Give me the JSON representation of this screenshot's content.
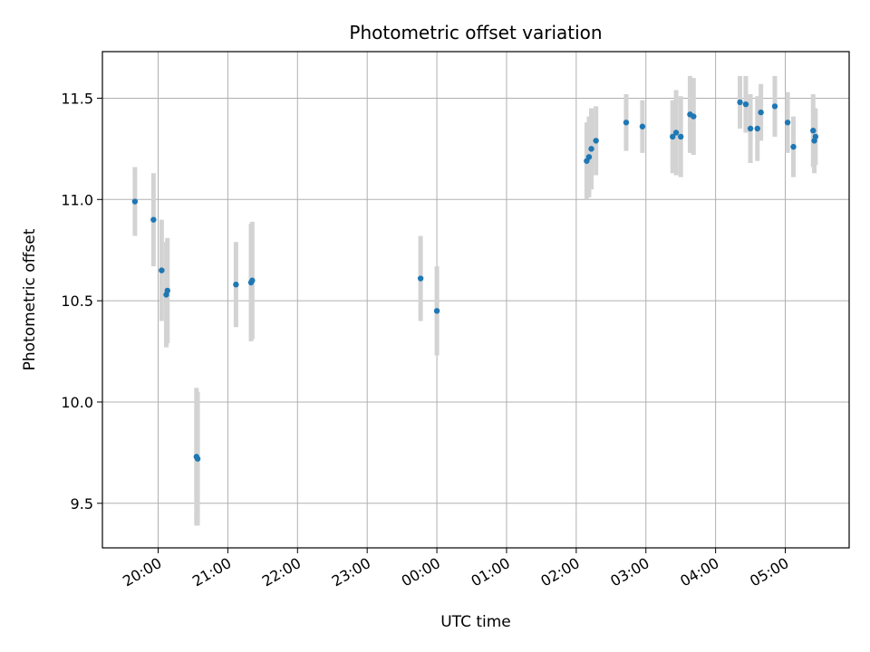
{
  "chart_data": {
    "type": "scatter",
    "title": "Photometric offset variation",
    "xlabel": "UTC time",
    "ylabel": "Photometric offset",
    "grid": true,
    "colors": {
      "points": "#1f77b4",
      "errorbars": "#d3d3d3",
      "grid": "#b0b0b0"
    },
    "xlim": [
      "19:12",
      "29:55"
    ],
    "ylim": [
      9.28,
      11.73
    ],
    "x_ticks": [
      "20:00",
      "21:00",
      "22:00",
      "23:00",
      "00:00",
      "01:00",
      "02:00",
      "03:00",
      "04:00",
      "05:00"
    ],
    "y_ticks": [
      "9.5",
      "10.0",
      "10.5",
      "11.0",
      "11.5"
    ],
    "series": [
      {
        "points": [
          {
            "x": "19:40",
            "y": 10.99,
            "err": 0.17
          },
          {
            "x": "19:56",
            "y": 10.9,
            "err": 0.23
          },
          {
            "x": "20:03",
            "y": 10.65,
            "err": 0.25
          },
          {
            "x": "20:07",
            "y": 10.53,
            "err": 0.26
          },
          {
            "x": "20:08",
            "y": 10.55,
            "err": 0.26
          },
          {
            "x": "20:33",
            "y": 9.73,
            "err": 0.34
          },
          {
            "x": "20:34",
            "y": 9.72,
            "err": 0.33
          },
          {
            "x": "21:07",
            "y": 10.58,
            "err": 0.21
          },
          {
            "x": "21:20",
            "y": 10.59,
            "err": 0.29
          },
          {
            "x": "21:21",
            "y": 10.6,
            "err": 0.29
          },
          {
            "x": "23:46",
            "y": 10.61,
            "err": 0.21
          },
          {
            "x": "24:00",
            "y": 10.45,
            "err": 0.22
          },
          {
            "x": "26:09",
            "y": 11.19,
            "err": 0.19
          },
          {
            "x": "26:11",
            "y": 11.21,
            "err": 0.2
          },
          {
            "x": "26:13",
            "y": 11.25,
            "err": 0.2
          },
          {
            "x": "26:17",
            "y": 11.29,
            "err": 0.17
          },
          {
            "x": "26:43",
            "y": 11.38,
            "err": 0.14
          },
          {
            "x": "26:57",
            "y": 11.36,
            "err": 0.13
          },
          {
            "x": "27:23",
            "y": 11.31,
            "err": 0.18
          },
          {
            "x": "27:26",
            "y": 11.33,
            "err": 0.21
          },
          {
            "x": "27:30",
            "y": 11.31,
            "err": 0.2
          },
          {
            "x": "27:38",
            "y": 11.42,
            "err": 0.19
          },
          {
            "x": "27:41",
            "y": 11.41,
            "err": 0.19
          },
          {
            "x": "28:21",
            "y": 11.48,
            "err": 0.13
          },
          {
            "x": "28:26",
            "y": 11.47,
            "err": 0.14
          },
          {
            "x": "28:30",
            "y": 11.35,
            "err": 0.17
          },
          {
            "x": "28:36",
            "y": 11.35,
            "err": 0.16
          },
          {
            "x": "28:39",
            "y": 11.43,
            "err": 0.14
          },
          {
            "x": "28:51",
            "y": 11.46,
            "err": 0.15
          },
          {
            "x": "29:02",
            "y": 11.38,
            "err": 0.15
          },
          {
            "x": "29:07",
            "y": 11.26,
            "err": 0.15
          },
          {
            "x": "29:24",
            "y": 11.34,
            "err": 0.18
          },
          {
            "x": "29:25",
            "y": 11.29,
            "err": 0.16
          },
          {
            "x": "29:26",
            "y": 11.31,
            "err": 0.14
          }
        ]
      }
    ]
  }
}
